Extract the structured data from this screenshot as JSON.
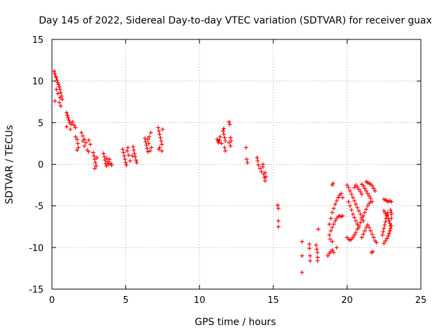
{
  "chart_data": {
    "type": "scatter",
    "title": "Day 145 of 2022, Sidereal Day-to-day VTEC variation (SDTVAR) for receiver guax",
    "xlabel": "GPS time / hours",
    "ylabel": "SDTVAR / TECUs",
    "xlim": [
      0,
      25
    ],
    "ylim": [
      -15,
      15
    ],
    "xticks": [
      0,
      5,
      10,
      15,
      20,
      25
    ],
    "yticks": [
      -15,
      -10,
      -5,
      0,
      5,
      10,
      15
    ],
    "grid": true,
    "marker": "+",
    "color": "#ff0000",
    "series": [
      {
        "name": "SDTVAR",
        "points": [
          [
            0.15,
            11.2
          ],
          [
            0.2,
            10.9
          ],
          [
            0.25,
            10.6
          ],
          [
            0.3,
            10.4
          ],
          [
            0.35,
            10.1
          ],
          [
            0.4,
            9.8
          ],
          [
            0.45,
            9.6
          ],
          [
            0.5,
            9.3
          ],
          [
            0.55,
            9.0
          ],
          [
            0.6,
            8.6
          ],
          [
            0.65,
            8.2
          ],
          [
            0.7,
            7.8
          ],
          [
            0.2,
            7.6
          ],
          [
            0.3,
            9.0
          ],
          [
            0.5,
            7.4
          ],
          [
            0.6,
            7.0
          ],
          [
            0.4,
            8.5
          ],
          [
            0.55,
            8.0
          ],
          [
            1.0,
            6.2
          ],
          [
            1.05,
            5.9
          ],
          [
            1.1,
            5.6
          ],
          [
            1.15,
            5.3
          ],
          [
            1.2,
            5.0
          ],
          [
            1.3,
            4.8
          ],
          [
            1.4,
            5.1
          ],
          [
            1.5,
            4.7
          ],
          [
            1.0,
            4.5
          ],
          [
            1.6,
            4.4
          ],
          [
            1.25,
            4.2
          ],
          [
            1.6,
            3.3
          ],
          [
            1.7,
            3.0
          ],
          [
            1.75,
            2.5
          ],
          [
            1.8,
            2.0
          ],
          [
            1.7,
            1.7
          ],
          [
            2.0,
            3.8
          ],
          [
            2.1,
            3.4
          ],
          [
            2.2,
            3.0
          ],
          [
            2.3,
            2.6
          ],
          [
            2.2,
            2.2
          ],
          [
            2.4,
            1.7
          ],
          [
            2.5,
            2.9
          ],
          [
            2.6,
            2.4
          ],
          [
            2.5,
            1.5
          ],
          [
            2.1,
            2.8
          ],
          [
            2.8,
            1.4
          ],
          [
            2.85,
            1.0
          ],
          [
            2.9,
            0.6
          ],
          [
            2.95,
            0.2
          ],
          [
            3.0,
            -0.2
          ],
          [
            2.9,
            -0.5
          ],
          [
            3.05,
            0.8
          ],
          [
            3.5,
            1.3
          ],
          [
            3.55,
            0.9
          ],
          [
            3.6,
            0.5
          ],
          [
            3.65,
            0.1
          ],
          [
            3.7,
            -0.2
          ],
          [
            3.8,
            0.3
          ],
          [
            3.9,
            0.6
          ],
          [
            4.0,
            0.1
          ],
          [
            4.05,
            -0.1
          ],
          [
            3.85,
            0.0
          ],
          [
            3.7,
            0.7
          ],
          [
            4.8,
            1.8
          ],
          [
            4.85,
            1.4
          ],
          [
            4.9,
            1.0
          ],
          [
            4.95,
            0.6
          ],
          [
            5.0,
            0.2
          ],
          [
            5.05,
            -0.1
          ],
          [
            5.1,
            1.6
          ],
          [
            5.15,
            2.0
          ],
          [
            5.2,
            1.1
          ],
          [
            5.3,
            0.4
          ],
          [
            5.5,
            2.1
          ],
          [
            5.55,
            1.7
          ],
          [
            5.6,
            1.3
          ],
          [
            5.65,
            0.9
          ],
          [
            5.7,
            0.5
          ],
          [
            5.75,
            0.2
          ],
          [
            5.45,
            1.0
          ],
          [
            6.3,
            3.1
          ],
          [
            6.35,
            2.7
          ],
          [
            6.4,
            2.3
          ],
          [
            6.45,
            1.9
          ],
          [
            6.5,
            1.5
          ],
          [
            6.55,
            2.5
          ],
          [
            6.6,
            3.3
          ],
          [
            6.7,
            3.8
          ],
          [
            6.75,
            2.0
          ],
          [
            6.65,
            1.6
          ],
          [
            6.5,
            3.0
          ],
          [
            7.2,
            4.4
          ],
          [
            7.25,
            4.0
          ],
          [
            7.3,
            3.6
          ],
          [
            7.35,
            3.2
          ],
          [
            7.4,
            2.8
          ],
          [
            7.45,
            2.4
          ],
          [
            7.5,
            4.2
          ],
          [
            7.3,
            2.0
          ],
          [
            7.25,
            1.8
          ],
          [
            7.45,
            1.6
          ],
          [
            11.2,
            3.0
          ],
          [
            11.25,
            2.8
          ],
          [
            11.3,
            2.6
          ],
          [
            11.35,
            2.9
          ],
          [
            11.4,
            3.3
          ],
          [
            11.5,
            2.5
          ],
          [
            11.6,
            4.0
          ],
          [
            11.65,
            3.6
          ],
          [
            11.7,
            3.2
          ],
          [
            11.75,
            2.8
          ],
          [
            11.7,
            2.0
          ],
          [
            11.75,
            1.6
          ],
          [
            11.65,
            4.3
          ],
          [
            12.0,
            5.1
          ],
          [
            12.05,
            4.8
          ],
          [
            12.1,
            3.2
          ],
          [
            12.15,
            2.8
          ],
          [
            12.1,
            2.2
          ],
          [
            12.0,
            2.6
          ],
          [
            13.15,
            2.0
          ],
          [
            13.2,
            0.6
          ],
          [
            13.25,
            0.2
          ],
          [
            13.9,
            0.8
          ],
          [
            13.95,
            0.4
          ],
          [
            14.0,
            -0.1
          ],
          [
            14.1,
            -0.5
          ],
          [
            14.2,
            -0.9
          ],
          [
            14.3,
            -0.3
          ],
          [
            14.35,
            -1.2
          ],
          [
            14.4,
            -1.6
          ],
          [
            14.45,
            -2.0
          ],
          [
            14.5,
            -1.5
          ],
          [
            14.3,
            0.0
          ],
          [
            14.45,
            -1.0
          ],
          [
            15.3,
            -4.9
          ],
          [
            15.35,
            -5.3
          ],
          [
            15.35,
            -6.8
          ],
          [
            15.35,
            -7.5
          ],
          [
            16.95,
            -9.3
          ],
          [
            16.95,
            -11.0
          ],
          [
            16.95,
            -13.0
          ],
          [
            17.45,
            -9.6
          ],
          [
            17.45,
            -10.1
          ],
          [
            17.5,
            -11.0
          ],
          [
            17.5,
            -11.6
          ],
          [
            17.9,
            -9.7
          ],
          [
            17.95,
            -10.2
          ],
          [
            18.0,
            -10.6
          ],
          [
            18.0,
            -11.2
          ],
          [
            18.0,
            -11.6
          ],
          [
            18.05,
            -7.8
          ],
          [
            18.7,
            -11.0
          ],
          [
            18.8,
            -10.7
          ],
          [
            18.9,
            -10.5
          ],
          [
            19.0,
            -10.3
          ],
          [
            19.1,
            -10.6
          ],
          [
            19.3,
            -10.0
          ],
          [
            18.8,
            -7.2
          ],
          [
            18.9,
            -6.5
          ],
          [
            19.0,
            -5.8
          ],
          [
            19.1,
            -5.3
          ],
          [
            19.2,
            -4.8
          ],
          [
            19.3,
            -4.4
          ],
          [
            19.4,
            -4.0
          ],
          [
            19.5,
            -3.7
          ],
          [
            19.6,
            -3.5
          ],
          [
            19.7,
            -4.0
          ],
          [
            18.8,
            -8.5
          ],
          [
            18.9,
            -8.0
          ],
          [
            19.0,
            -7.6
          ],
          [
            19.1,
            -7.2
          ],
          [
            19.2,
            -6.8
          ],
          [
            19.3,
            -6.5
          ],
          [
            19.4,
            -6.3
          ],
          [
            19.5,
            -6.2
          ],
          [
            19.6,
            -6.3
          ],
          [
            19.7,
            -6.2
          ],
          [
            19.0,
            -2.5
          ],
          [
            19.05,
            -2.3
          ],
          [
            18.85,
            -9.0
          ],
          [
            19.0,
            -9.3
          ],
          [
            20.0,
            -2.5
          ],
          [
            20.1,
            -2.8
          ],
          [
            20.2,
            -3.2
          ],
          [
            20.3,
            -3.6
          ],
          [
            20.4,
            -4.0
          ],
          [
            20.5,
            -4.4
          ],
          [
            20.6,
            -4.8
          ],
          [
            20.7,
            -5.2
          ],
          [
            20.8,
            -5.6
          ],
          [
            20.9,
            -6.0
          ],
          [
            21.0,
            -6.4
          ],
          [
            21.1,
            -6.8
          ],
          [
            20.1,
            -4.5
          ],
          [
            20.2,
            -5.0
          ],
          [
            20.3,
            -5.5
          ],
          [
            20.4,
            -6.0
          ],
          [
            20.5,
            -6.4
          ],
          [
            20.6,
            -6.8
          ],
          [
            20.7,
            -7.2
          ],
          [
            20.8,
            -7.6
          ],
          [
            20.6,
            -2.5
          ],
          [
            20.7,
            -2.7
          ],
          [
            20.8,
            -3.0
          ],
          [
            20.9,
            -3.3
          ],
          [
            21.0,
            -3.6
          ],
          [
            20.5,
            -2.8
          ],
          [
            21.0,
            -2.4
          ],
          [
            21.1,
            -2.6
          ],
          [
            21.2,
            -2.9
          ],
          [
            21.3,
            -3.2
          ],
          [
            21.4,
            -3.5
          ],
          [
            21.5,
            -3.8
          ],
          [
            21.6,
            -4.1
          ],
          [
            21.7,
            -4.5
          ],
          [
            21.3,
            -2.1
          ],
          [
            21.4,
            -2.2
          ],
          [
            21.5,
            -2.3
          ],
          [
            21.6,
            -2.4
          ],
          [
            21.7,
            -2.6
          ],
          [
            21.8,
            -2.9
          ],
          [
            21.9,
            -3.2
          ],
          [
            20.0,
            -8.8
          ],
          [
            20.1,
            -9.0
          ],
          [
            20.2,
            -9.1
          ],
          [
            20.3,
            -9.0
          ],
          [
            20.4,
            -8.8
          ],
          [
            20.5,
            -8.5
          ],
          [
            20.6,
            -8.2
          ],
          [
            20.7,
            -7.8
          ],
          [
            20.8,
            -7.4
          ],
          [
            20.9,
            -7.0
          ],
          [
            21.0,
            -6.6
          ],
          [
            21.1,
            -6.2
          ],
          [
            21.2,
            -5.8
          ],
          [
            21.3,
            -5.4
          ],
          [
            21.4,
            -5.0
          ],
          [
            21.5,
            -4.7
          ],
          [
            21.6,
            -4.5
          ],
          [
            21.0,
            -8.8
          ],
          [
            21.1,
            -8.4
          ],
          [
            21.2,
            -8.0
          ],
          [
            21.3,
            -7.6
          ],
          [
            21.4,
            -7.3
          ],
          [
            21.5,
            -7.6
          ],
          [
            21.6,
            -8.0
          ],
          [
            21.7,
            -8.4
          ],
          [
            21.8,
            -8.8
          ],
          [
            21.9,
            -9.2
          ],
          [
            22.0,
            -9.4
          ],
          [
            21.65,
            -10.6
          ],
          [
            21.75,
            -10.5
          ],
          [
            22.4,
            -8.5
          ],
          [
            22.45,
            -8.1
          ],
          [
            22.5,
            -7.7
          ],
          [
            22.55,
            -7.3
          ],
          [
            22.6,
            -6.9
          ],
          [
            22.65,
            -6.5
          ],
          [
            22.7,
            -6.1
          ],
          [
            22.75,
            -5.8
          ],
          [
            22.5,
            -9.5
          ],
          [
            22.6,
            -9.2
          ],
          [
            22.7,
            -8.9
          ],
          [
            22.8,
            -8.6
          ],
          [
            22.85,
            -8.3
          ],
          [
            22.9,
            -8.0
          ],
          [
            22.95,
            -7.7
          ],
          [
            23.0,
            -7.4
          ],
          [
            22.5,
            -5.6
          ],
          [
            22.6,
            -5.9
          ],
          [
            22.7,
            -6.2
          ],
          [
            22.8,
            -6.5
          ],
          [
            22.85,
            -6.8
          ],
          [
            22.9,
            -7.1
          ],
          [
            22.95,
            -7.4
          ],
          [
            23.0,
            -6.5
          ],
          [
            22.6,
            -4.3
          ],
          [
            22.7,
            -4.4
          ],
          [
            22.8,
            -4.5
          ],
          [
            22.9,
            -4.4
          ],
          [
            23.0,
            -4.5
          ],
          [
            22.5,
            -4.2
          ],
          [
            23.0,
            -5.8
          ],
          [
            23.0,
            -6.0
          ],
          [
            22.95,
            -5.5
          ]
        ]
      }
    ]
  }
}
